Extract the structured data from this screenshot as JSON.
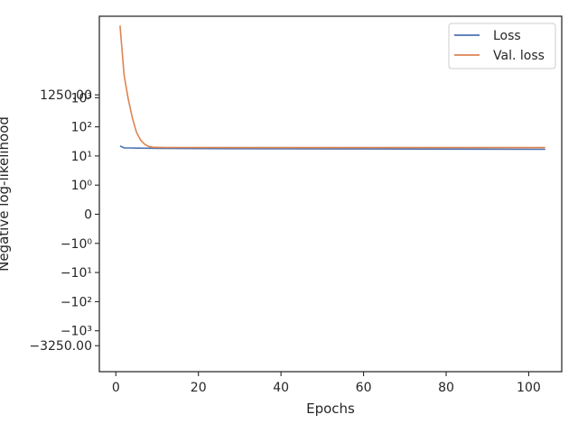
{
  "chart_data": {
    "type": "line",
    "title": "",
    "xlabel": "Epochs",
    "ylabel": "Negative log-likelihood",
    "y_scale": "symlog",
    "xlim": [
      -4,
      108
    ],
    "x_ticks": [
      0,
      20,
      40,
      60,
      80,
      100
    ],
    "y_ticks": [
      {
        "value": 1250,
        "label": "1250.00"
      },
      {
        "value": 1000,
        "label": "10³"
      },
      {
        "value": 100,
        "label": "10²"
      },
      {
        "value": 10,
        "label": "10¹"
      },
      {
        "value": 1,
        "label": "10⁰"
      },
      {
        "value": 0,
        "label": "0"
      },
      {
        "value": -1,
        "label": "−10⁰"
      },
      {
        "value": -10,
        "label": "−10¹"
      },
      {
        "value": -100,
        "label": "−10²"
      },
      {
        "value": -1000,
        "label": "−10³"
      },
      {
        "value": -3250,
        "label": "−3250.00"
      }
    ],
    "grid": false,
    "legend_position": "top-right",
    "series": [
      {
        "name": "Loss",
        "color": "#4c72b0",
        "x": [
          1,
          2,
          3,
          5,
          8,
          10,
          20,
          40,
          60,
          80,
          104
        ],
        "y": [
          22,
          19,
          18.8,
          18.6,
          18.4,
          18.2,
          17.9,
          17.6,
          17.4,
          17.2,
          17
        ]
      },
      {
        "name": "Val. loss",
        "color": "#dd8452",
        "x": [
          1,
          2,
          3,
          4,
          5,
          6,
          7,
          8,
          9,
          10,
          12,
          20,
          40,
          60,
          80,
          104
        ],
        "y": [
          300000,
          6000,
          900,
          200,
          65,
          35,
          25,
          21,
          20,
          19.8,
          19.6,
          19.5,
          19.4,
          19.4,
          19.4,
          19.4
        ]
      }
    ]
  }
}
